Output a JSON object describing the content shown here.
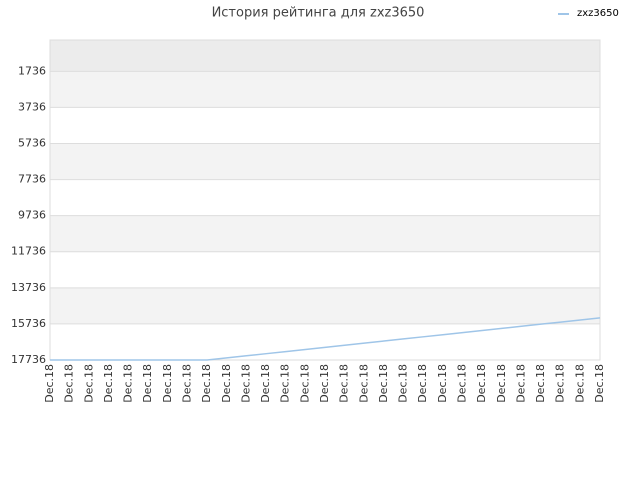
{
  "chart_data": {
    "type": "line",
    "title": "История рейтинга для zxz3650",
    "categories": [
      "Dec.18",
      "Dec.18",
      "Dec.18",
      "Dec.18",
      "Dec.18",
      "Dec.18",
      "Dec.18",
      "Dec.18",
      "Dec.18",
      "Dec.18",
      "Dec.18",
      "Dec.18",
      "Dec.18",
      "Dec.18",
      "Dec.18",
      "Dec.18",
      "Dec.18",
      "Dec.18",
      "Dec.18",
      "Dec.18",
      "Dec.18",
      "Dec.18",
      "Dec.18",
      "Dec.18",
      "Dec.18",
      "Dec.18",
      "Dec.18",
      "Dec.18",
      "Dec.18"
    ],
    "series": [
      {
        "name": "zxz3650",
        "color": "#9fc5e8",
        "values": [
          17736,
          17736,
          17736,
          17736,
          17736,
          17736,
          17736,
          17736,
          17736,
          17619,
          17502,
          17386,
          17269,
          17152,
          17035,
          16918,
          16802,
          16685,
          16568,
          16451,
          16334,
          16218,
          16101,
          15984,
          15867,
          15750,
          15634,
          15517,
          15400
        ]
      }
    ],
    "ylim": [
      17736,
      0
    ],
    "yticks": [
      1736,
      3736,
      5736,
      7736,
      9736,
      11736,
      13736,
      15736,
      17736
    ],
    "grid": true,
    "legend": "top-right"
  }
}
